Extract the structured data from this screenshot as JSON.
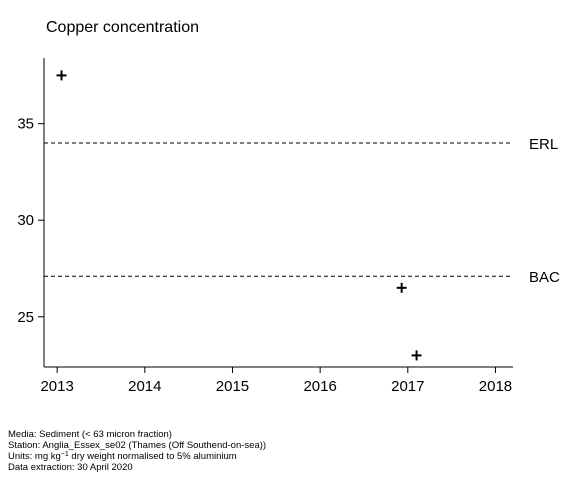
{
  "chart_data": {
    "type": "scatter",
    "title": "Copper concentration",
    "xlabel": "",
    "ylabel": "",
    "xlim": [
      2012.85,
      2018.2
    ],
    "ylim": [
      22.4,
      38.4
    ],
    "xticks": [
      2013,
      2014,
      2015,
      2016,
      2017,
      2018
    ],
    "yticks": [
      25,
      30,
      35
    ],
    "points": [
      {
        "x": 2013.05,
        "y": 37.5
      },
      {
        "x": 2016.93,
        "y": 26.5
      },
      {
        "x": 2017.1,
        "y": 23.0
      }
    ],
    "reference_lines": [
      {
        "label": "ERL",
        "y": 34.0,
        "style": "dashed"
      },
      {
        "label": "BAC",
        "y": 27.1,
        "style": "dashed"
      }
    ],
    "marker": "plus",
    "grid": false,
    "legend": "none"
  },
  "footer": {
    "media": "Media: Sediment (< 63 micron fraction)",
    "station": "Station: Anglia_Essex_se02 (Thames (Off Southend-on-sea))",
    "units_prefix": "Units:  mg kg",
    "units_exponent": "−1",
    "units_suffix": " dry weight normalised to 5% aluminium",
    "extraction": "Data extraction: 30 April 2020"
  }
}
